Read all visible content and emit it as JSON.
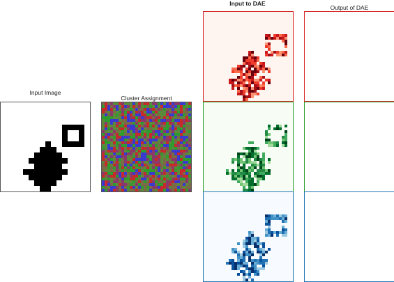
{
  "titles": {
    "input_image": "Input Image",
    "cluster_assignment": "Cluster Assignment",
    "input_to_dae": "Input to DAE",
    "output_of_dae": "Output of DAE"
  },
  "colors": {
    "border_dark": "#555555",
    "red": "#d62728",
    "green": "#2ca02c",
    "blue": "#1f77b4",
    "red_bg": "#fff5f0",
    "green_bg": "#f7fcf5",
    "blue_bg": "#f7fbff",
    "cluster_palette": [
      "#2e9c2e",
      "#c62a2a",
      "#3a3ad0",
      "#7a6a45",
      "#5a8a3a",
      "#8a3a6a"
    ]
  },
  "panels": {
    "dae_inputs": [
      {
        "name": "dae-input-red",
        "cmap": "red"
      },
      {
        "name": "dae-input-green",
        "cmap": "green"
      },
      {
        "name": "dae-input-blue",
        "cmap": "blue"
      }
    ],
    "dae_outputs": [
      {
        "name": "dae-output-red",
        "cmap": "red"
      },
      {
        "name": "dae-output-green",
        "cmap": "green"
      },
      {
        "name": "dae-output-blue",
        "cmap": "blue"
      }
    ]
  }
}
